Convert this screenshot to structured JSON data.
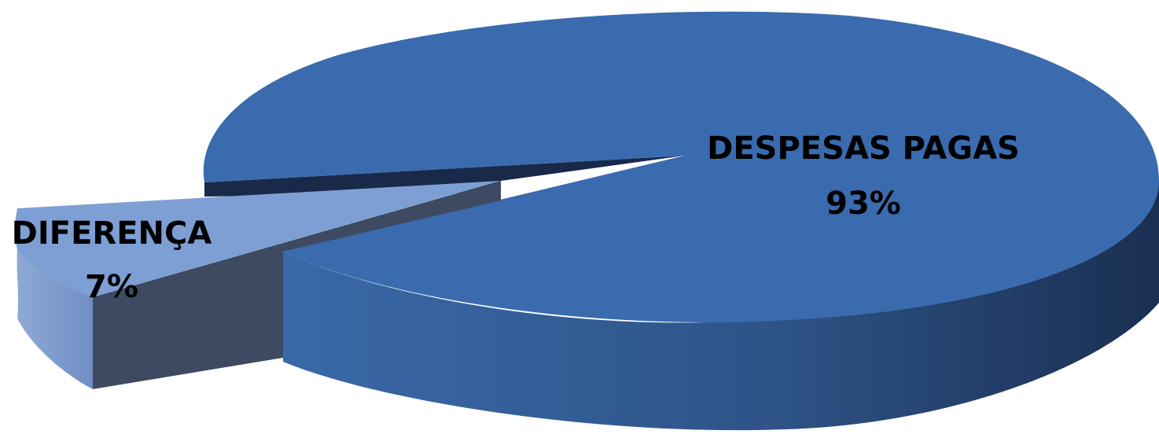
{
  "chart_data": {
    "type": "pie",
    "style": "3d-exploded",
    "title": "",
    "slices": [
      {
        "label": "DESPESAS PAGAS",
        "value": 93,
        "value_label": "93%",
        "color": "#3A6BAE"
      },
      {
        "label": "DIFERENÇA",
        "value": 7,
        "value_label": "7%",
        "color": "#7E9FD3"
      }
    ],
    "legend": "none"
  }
}
